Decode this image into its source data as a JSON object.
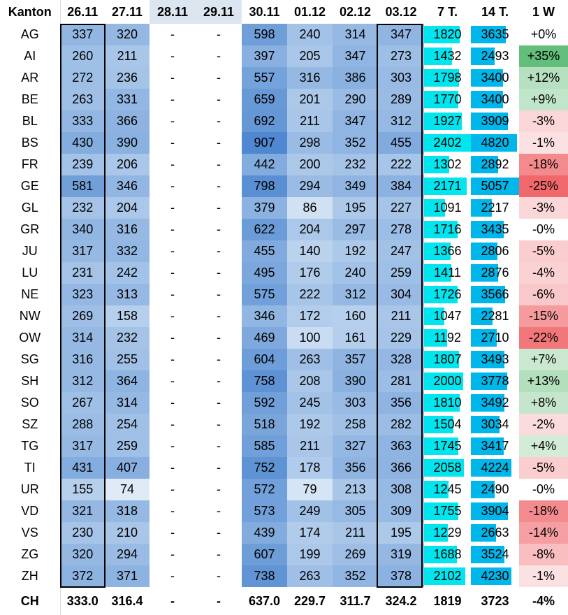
{
  "chart_data": {
    "type": "table",
    "columns": [
      "Kanton",
      "26.11",
      "27.11",
      "28.11",
      "29.11",
      "30.11",
      "01.12",
      "02.12",
      "03.12",
      "7 T.",
      "14 T.",
      "1 W"
    ],
    "rows": [
      {
        "k": "AG",
        "d": [
          "337",
          "320",
          "-",
          "-",
          "598",
          "240",
          "314",
          "347"
        ],
        "t7": 1820,
        "t14": 3635,
        "w": "+0%",
        "wv": 0
      },
      {
        "k": "AI",
        "d": [
          "260",
          "211",
          "-",
          "-",
          "397",
          "205",
          "347",
          "273"
        ],
        "t7": 1432,
        "t14": 2493,
        "w": "+35%",
        "wv": 35
      },
      {
        "k": "AR",
        "d": [
          "272",
          "236",
          "-",
          "-",
          "557",
          "316",
          "386",
          "303"
        ],
        "t7": 1798,
        "t14": 3400,
        "w": "+12%",
        "wv": 12
      },
      {
        "k": "BE",
        "d": [
          "263",
          "331",
          "-",
          "-",
          "659",
          "201",
          "290",
          "289"
        ],
        "t7": 1770,
        "t14": 3400,
        "w": "+9%",
        "wv": 9
      },
      {
        "k": "BL",
        "d": [
          "333",
          "366",
          "-",
          "-",
          "692",
          "211",
          "347",
          "312"
        ],
        "t7": 1927,
        "t14": 3909,
        "w": "-3%",
        "wv": -3
      },
      {
        "k": "BS",
        "d": [
          "430",
          "390",
          "-",
          "-",
          "907",
          "298",
          "352",
          "455"
        ],
        "t7": 2402,
        "t14": 4820,
        "w": "-1%",
        "wv": -1
      },
      {
        "k": "FR",
        "d": [
          "239",
          "206",
          "-",
          "-",
          "442",
          "200",
          "232",
          "222"
        ],
        "t7": 1302,
        "t14": 2892,
        "w": "-18%",
        "wv": -18
      },
      {
        "k": "GE",
        "d": [
          "581",
          "346",
          "-",
          "-",
          "798",
          "294",
          "349",
          "384"
        ],
        "t7": 2171,
        "t14": 5057,
        "w": "-25%",
        "wv": -25
      },
      {
        "k": "GL",
        "d": [
          "232",
          "204",
          "-",
          "-",
          "379",
          "86",
          "195",
          "227"
        ],
        "t7": 1091,
        "t14": 2217,
        "w": "-3%",
        "wv": -3
      },
      {
        "k": "GR",
        "d": [
          "340",
          "316",
          "-",
          "-",
          "622",
          "204",
          "297",
          "278"
        ],
        "t7": 1716,
        "t14": 3435,
        "w": "-0%",
        "wv": 0
      },
      {
        "k": "JU",
        "d": [
          "317",
          "332",
          "-",
          "-",
          "455",
          "140",
          "192",
          "247"
        ],
        "t7": 1366,
        "t14": 2806,
        "w": "-5%",
        "wv": -5
      },
      {
        "k": "LU",
        "d": [
          "231",
          "242",
          "-",
          "-",
          "495",
          "176",
          "240",
          "259"
        ],
        "t7": 1411,
        "t14": 2876,
        "w": "-4%",
        "wv": -4
      },
      {
        "k": "NE",
        "d": [
          "323",
          "313",
          "-",
          "-",
          "575",
          "222",
          "312",
          "304"
        ],
        "t7": 1726,
        "t14": 3566,
        "w": "-6%",
        "wv": -6
      },
      {
        "k": "NW",
        "d": [
          "269",
          "158",
          "-",
          "-",
          "346",
          "172",
          "160",
          "211"
        ],
        "t7": 1047,
        "t14": 2281,
        "w": "-15%",
        "wv": -15
      },
      {
        "k": "OW",
        "d": [
          "314",
          "232",
          "-",
          "-",
          "469",
          "100",
          "161",
          "229"
        ],
        "t7": 1192,
        "t14": 2710,
        "w": "-22%",
        "wv": -22
      },
      {
        "k": "SG",
        "d": [
          "316",
          "255",
          "-",
          "-",
          "604",
          "263",
          "357",
          "328"
        ],
        "t7": 1807,
        "t14": 3493,
        "w": "+7%",
        "wv": 7
      },
      {
        "k": "SH",
        "d": [
          "312",
          "364",
          "-",
          "-",
          "758",
          "208",
          "390",
          "281"
        ],
        "t7": 2000,
        "t14": 3778,
        "w": "+13%",
        "wv": 13
      },
      {
        "k": "SO",
        "d": [
          "267",
          "314",
          "-",
          "-",
          "592",
          "245",
          "303",
          "356"
        ],
        "t7": 1810,
        "t14": 3492,
        "w": "+8%",
        "wv": 8
      },
      {
        "k": "SZ",
        "d": [
          "288",
          "254",
          "-",
          "-",
          "518",
          "192",
          "258",
          "282"
        ],
        "t7": 1504,
        "t14": 3034,
        "w": "-2%",
        "wv": -2
      },
      {
        "k": "TG",
        "d": [
          "317",
          "259",
          "-",
          "-",
          "585",
          "211",
          "327",
          "363"
        ],
        "t7": 1745,
        "t14": 3417,
        "w": "+4%",
        "wv": 4
      },
      {
        "k": "TI",
        "d": [
          "431",
          "407",
          "-",
          "-",
          "752",
          "178",
          "356",
          "366"
        ],
        "t7": 2058,
        "t14": 4224,
        "w": "-5%",
        "wv": -5
      },
      {
        "k": "UR",
        "d": [
          "155",
          "74",
          "-",
          "-",
          "572",
          "79",
          "213",
          "308"
        ],
        "t7": 1245,
        "t14": 2490,
        "w": "-0%",
        "wv": 0
      },
      {
        "k": "VD",
        "d": [
          "321",
          "318",
          "-",
          "-",
          "573",
          "249",
          "305",
          "309"
        ],
        "t7": 1755,
        "t14": 3904,
        "w": "-18%",
        "wv": -18
      },
      {
        "k": "VS",
        "d": [
          "230",
          "210",
          "-",
          "-",
          "439",
          "174",
          "211",
          "195"
        ],
        "t7": 1229,
        "t14": 2663,
        "w": "-14%",
        "wv": -14
      },
      {
        "k": "ZG",
        "d": [
          "320",
          "294",
          "-",
          "-",
          "607",
          "199",
          "269",
          "319"
        ],
        "t7": 1688,
        "t14": 3524,
        "w": "-8%",
        "wv": -8
      },
      {
        "k": "ZH",
        "d": [
          "372",
          "371",
          "-",
          "-",
          "738",
          "263",
          "352",
          "378"
        ],
        "t7": 2102,
        "t14": 4230,
        "w": "-1%",
        "wv": -1
      }
    ],
    "total": {
      "k": "CH",
      "d": [
        "333.0",
        "316.4",
        "-",
        "-",
        "637.0",
        "229.7",
        "311.7",
        "324.2"
      ],
      "t7": "1819",
      "t14": "3723",
      "w": "-4%"
    },
    "bar_max": {
      "t7": 2402,
      "t14": 5057
    }
  }
}
